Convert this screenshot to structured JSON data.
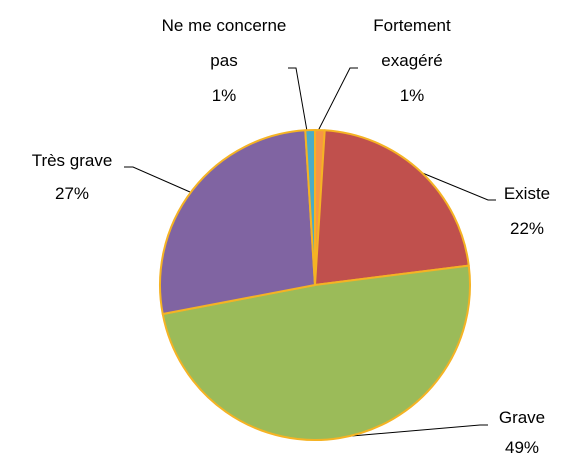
{
  "chart_data": {
    "type": "pie",
    "categories": [
      "Fortement exagéré",
      "Existe",
      "Grave",
      "Très grave",
      "Ne me concerne pas"
    ],
    "values": [
      1,
      22,
      49,
      27,
      1
    ],
    "value_labels": [
      "1%",
      "22%",
      "49%",
      "27%",
      "1%"
    ],
    "colors": [
      "#f79646",
      "#c0504d",
      "#9bbb59",
      "#8064a2",
      "#4bacc6"
    ]
  }
}
